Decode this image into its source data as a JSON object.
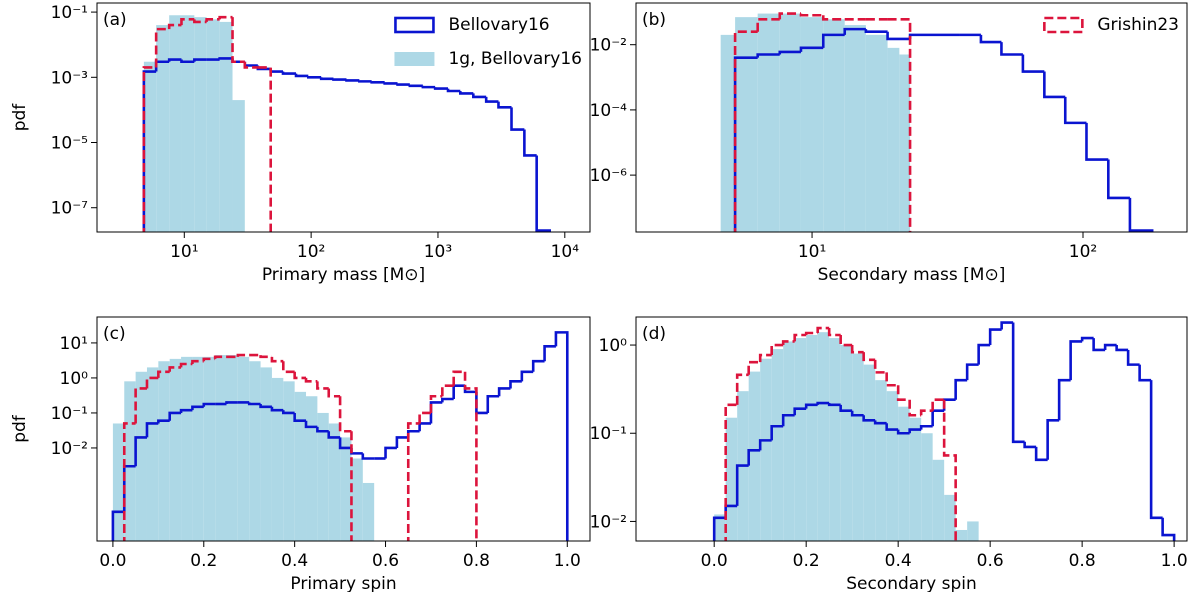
{
  "chart_data": [
    {
      "type": "histogram",
      "label": "(a)",
      "xlabel": "Primary mass [M⊙]",
      "ylabel": "pdf",
      "xscale": "log",
      "yscale": "log",
      "xlim": [
        2.05,
        15800
      ],
      "ylim": [
        1.8e-08,
        0.19
      ],
      "xticks": [
        {
          "value": 10,
          "label": "10¹"
        },
        {
          "value": 100,
          "label": "10²"
        },
        {
          "value": 1000,
          "label": "10³"
        },
        {
          "value": 10000,
          "label": "10⁴"
        }
      ],
      "yticks": [
        {
          "value": 1e-07,
          "label": "10⁻⁷"
        },
        {
          "value": 1e-05,
          "label": "10⁻⁵"
        },
        {
          "value": 0.001,
          "label": "10⁻³"
        },
        {
          "value": 0.1,
          "label": "10⁻¹"
        }
      ],
      "legend": "upper right",
      "series": [
        {
          "name": "Bellovary16",
          "color": "#0a14d0",
          "histtype": "step",
          "linestyle": "solid",
          "bins": [
            4.8,
            6,
            7.6,
            9.5,
            12,
            15,
            19,
            24,
            30,
            38,
            48,
            60,
            76,
            95,
            120,
            150,
            190,
            240,
            300,
            380,
            480,
            600,
            760,
            950,
            1200,
            1500,
            1900,
            2400,
            3000,
            3800,
            4800,
            6000,
            7600
          ],
          "values": [
            0.0015,
            0.003,
            0.0035,
            0.003,
            0.0035,
            0.0035,
            0.0038,
            0.003,
            0.0023,
            0.0018,
            0.0015,
            0.0013,
            0.0011,
            0.001,
            0.0009,
            0.00085,
            0.0008,
            0.00075,
            0.0007,
            0.00065,
            0.0006,
            0.00055,
            0.0005,
            0.00045,
            0.00038,
            0.00032,
            0.00025,
            0.00018,
            0.00012,
            2.5e-05,
            4e-06,
            2e-08
          ]
        },
        {
          "name": "1g, Bellovary16",
          "color": "#add8e6",
          "histtype": "stepfilled",
          "bins": [
            4.8,
            6,
            7.6,
            9.5,
            12,
            15,
            19,
            24,
            30
          ],
          "values": [
            0.003,
            0.04,
            0.08,
            0.08,
            0.07,
            0.06,
            0.05,
            0.0002
          ]
        },
        {
          "color": "#dc143c",
          "histtype": "step",
          "linestyle": "dashed",
          "bins": [
            4.8,
            6,
            7.6,
            9.5,
            12,
            15,
            19,
            24,
            30,
            38,
            48
          ],
          "values": [
            0.002,
            0.03,
            0.04,
            0.06,
            0.05,
            0.06,
            0.07,
            0.003,
            0.002,
            0.002
          ]
        }
      ]
    },
    {
      "type": "histogram",
      "label": "(b)",
      "xlabel": "Secondary mass [M⊙]",
      "xscale": "log",
      "yscale": "log",
      "xlim": [
        2.24,
        242
      ],
      "ylim": [
        1.8e-08,
        0.19
      ],
      "xticks": [
        {
          "value": 10,
          "label": "10¹"
        },
        {
          "value": 100,
          "label": "10²"
        }
      ],
      "yticks": [
        {
          "value": 1e-06,
          "label": "10⁻⁶"
        },
        {
          "value": 0.0001,
          "label": "10⁻⁴"
        },
        {
          "value": 0.01,
          "label": "10⁻²"
        }
      ],
      "legend": "upper right",
      "series": [
        {
          "color": "#0a14d0",
          "histtype": "step",
          "linestyle": "solid",
          "bins": [
            5.2,
            6.3,
            7.6,
            9.1,
            11,
            13.2,
            15.8,
            19,
            23,
            35,
            42,
            50,
            60,
            72,
            86,
            103,
            124,
            149,
            180
          ],
          "values": [
            0.004,
            0.005,
            0.006,
            0.008,
            0.02,
            0.03,
            0.025,
            0.015,
            0.02,
            0.02,
            0.012,
            0.005,
            0.0015,
            0.00025,
            4e-05,
            3e-06,
            2e-07,
            2e-08
          ]
        },
        {
          "color": "#add8e6",
          "histtype": "stepfilled",
          "bins": [
            4.6,
            5.2,
            6.3,
            7.6,
            9.1,
            11,
            13.2,
            15.8,
            19,
            21,
            23
          ],
          "values": [
            0.02,
            0.07,
            0.09,
            0.09,
            0.07,
            0.06,
            0.04,
            0.02,
            0.008,
            0.005
          ]
        },
        {
          "name": "Grishin23",
          "color": "#dc143c",
          "histtype": "step",
          "linestyle": "dashed",
          "bins": [
            5.2,
            6.3,
            7.6,
            9.1,
            11,
            13.2,
            15.8,
            19,
            23
          ],
          "values": [
            0.025,
            0.06,
            0.09,
            0.08,
            0.06,
            0.06,
            0.06,
            0.06
          ]
        }
      ]
    },
    {
      "type": "histogram",
      "label": "(c)",
      "xlabel": "Primary spin",
      "ylabel": "pdf",
      "xscale": "linear",
      "yscale": "log",
      "xlim": [
        -0.035,
        1.05
      ],
      "ylim": [
        2.2e-05,
        55
      ],
      "xticks": [
        {
          "value": 0,
          "label": "0.0"
        },
        0.2,
        0.4,
        0.6,
        0.8,
        {
          "value": 1,
          "label": "1.0"
        }
      ],
      "yticks": [
        {
          "value": 0.01,
          "label": "10⁻²"
        },
        {
          "value": 0.1,
          "label": "10⁻¹"
        },
        {
          "value": 1,
          "label": "10⁰"
        },
        {
          "value": 10,
          "label": "10¹"
        }
      ],
      "series": [
        {
          "color": "#0a14d0",
          "histtype": "step",
          "linestyle": "solid",
          "bins": [
            0,
            0.025,
            0.05,
            0.075,
            0.1,
            0.125,
            0.15,
            0.175,
            0.2,
            0.225,
            0.25,
            0.275,
            0.3,
            0.325,
            0.35,
            0.375,
            0.4,
            0.425,
            0.45,
            0.475,
            0.5,
            0.525,
            0.55,
            0.575,
            0.6,
            0.625,
            0.65,
            0.675,
            0.7,
            0.725,
            0.75,
            0.775,
            0.8,
            0.825,
            0.85,
            0.875,
            0.9,
            0.925,
            0.95,
            0.975,
            1
          ],
          "values": [
            0.00015,
            0.003,
            0.02,
            0.05,
            0.06,
            0.1,
            0.12,
            0.15,
            0.18,
            0.18,
            0.2,
            0.2,
            0.18,
            0.15,
            0.12,
            0.1,
            0.06,
            0.04,
            0.03,
            0.02,
            0.01,
            0.007,
            0.005,
            0.005,
            0.01,
            0.02,
            0.03,
            0.05,
            0.2,
            0.25,
            0.6,
            0.4,
            0.1,
            0.3,
            0.5,
            0.8,
            1.5,
            3,
            8,
            20
          ]
        },
        {
          "color": "#add8e6",
          "histtype": "stepfilled",
          "bins": [
            0,
            0.025,
            0.05,
            0.075,
            0.1,
            0.125,
            0.15,
            0.175,
            0.2,
            0.225,
            0.25,
            0.275,
            0.3,
            0.325,
            0.35,
            0.375,
            0.4,
            0.425,
            0.45,
            0.475,
            0.5,
            0.525,
            0.55,
            0.575
          ],
          "values": [
            0.05,
            0.8,
            1.5,
            2,
            3,
            3.5,
            4,
            4,
            4,
            4.5,
            4.5,
            4,
            3,
            2,
            1,
            0.8,
            0.4,
            0.3,
            0.1,
            0.05,
            0.02,
            0.005,
            0.001
          ]
        },
        {
          "color": "#dc143c",
          "histtype": "step",
          "linestyle": "dashed",
          "bins": [
            0.025,
            0.05,
            0.075,
            0.1,
            0.125,
            0.15,
            0.175,
            0.2,
            0.225,
            0.25,
            0.275,
            0.3,
            0.325,
            0.35,
            0.375,
            0.4,
            0.425,
            0.45,
            0.475,
            0.5,
            0.525,
            0.55,
            0.575,
            0.6,
            0.625,
            0.65,
            0.675,
            0.7,
            0.725,
            0.75,
            0.775,
            0.8
          ],
          "values": [
            0.05,
            0.5,
            1,
            1.5,
            2,
            2.5,
            3,
            3.5,
            4,
            4,
            4.5,
            4.5,
            4,
            3,
            1.5,
            1,
            0.8,
            0.5,
            0.3,
            0.03,
            0,
            0,
            0,
            0,
            0,
            0.05,
            0.1,
            0.3,
            0.6,
            1.5,
            0.5
          ]
        }
      ]
    },
    {
      "type": "histogram",
      "label": "(d)",
      "xlabel": "Secondary spin",
      "xscale": "linear",
      "yscale": "log",
      "xlim": [
        -0.17,
        1.028
      ],
      "ylim": [
        0.006,
        2.08
      ],
      "xticks": [
        {
          "value": 0,
          "label": "0.0"
        },
        0.2,
        0.4,
        0.6,
        0.8,
        {
          "value": 1,
          "label": "1.0"
        }
      ],
      "yticks": [
        {
          "value": 0.01,
          "label": "10⁻²"
        },
        {
          "value": 0.1,
          "label": "10⁻¹"
        },
        {
          "value": 1,
          "label": "10⁰"
        }
      ],
      "series": [
        {
          "color": "#0a14d0",
          "histtype": "step",
          "linestyle": "solid",
          "bins": [
            0,
            0.025,
            0.05,
            0.075,
            0.1,
            0.125,
            0.15,
            0.175,
            0.2,
            0.225,
            0.25,
            0.275,
            0.3,
            0.325,
            0.35,
            0.375,
            0.4,
            0.425,
            0.45,
            0.475,
            0.5,
            0.525,
            0.55,
            0.575,
            0.6,
            0.625,
            0.65,
            0.675,
            0.7,
            0.725,
            0.75,
            0.775,
            0.8,
            0.825,
            0.85,
            0.875,
            0.9,
            0.925,
            0.95,
            0.975,
            1
          ],
          "values": [
            0.011,
            0.015,
            0.043,
            0.064,
            0.083,
            0.12,
            0.16,
            0.19,
            0.21,
            0.22,
            0.21,
            0.18,
            0.16,
            0.14,
            0.13,
            0.11,
            0.1,
            0.11,
            0.12,
            0.18,
            0.24,
            0.4,
            0.6,
            1,
            1.5,
            1.8,
            0.08,
            0.07,
            0.05,
            0.14,
            0.4,
            1.1,
            1.2,
            0.88,
            1,
            0.88,
            0.6,
            0.4,
            0.011,
            0.007
          ]
        },
        {
          "color": "#add8e6",
          "histtype": "stepfilled",
          "bins": [
            0,
            0.025,
            0.05,
            0.075,
            0.1,
            0.125,
            0.15,
            0.175,
            0.2,
            0.225,
            0.25,
            0.275,
            0.3,
            0.325,
            0.35,
            0.375,
            0.4,
            0.425,
            0.45,
            0.475,
            0.5,
            0.525,
            0.55,
            0.575
          ],
          "values": [
            0.012,
            0.15,
            0.3,
            0.5,
            0.7,
            0.9,
            1.1,
            1.2,
            1.3,
            1.4,
            1.2,
            1,
            0.8,
            0.6,
            0.4,
            0.3,
            0.2,
            0.15,
            0.1,
            0.05,
            0.02,
            0.008,
            0.01
          ]
        },
        {
          "color": "#dc143c",
          "histtype": "step",
          "linestyle": "dashed",
          "bins": [
            0.025,
            0.05,
            0.075,
            0.1,
            0.125,
            0.15,
            0.175,
            0.2,
            0.225,
            0.25,
            0.275,
            0.3,
            0.325,
            0.35,
            0.375,
            0.4,
            0.425,
            0.45,
            0.475,
            0.5,
            0.525
          ],
          "values": [
            0.21,
            0.46,
            0.64,
            0.77,
            1,
            1.1,
            1.3,
            1.37,
            1.56,
            1.3,
            1,
            0.83,
            0.68,
            0.49,
            0.35,
            0.24,
            0.16,
            0.18,
            0.24,
            0.056
          ]
        }
      ]
    }
  ]
}
